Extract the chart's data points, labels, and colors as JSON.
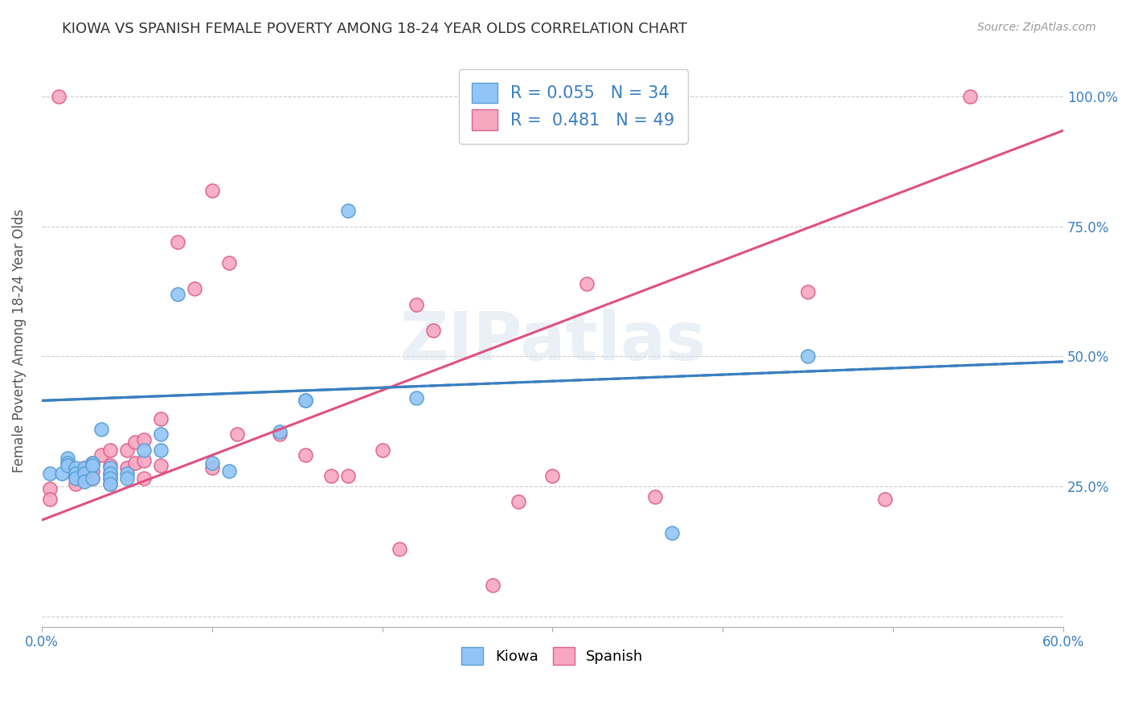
{
  "title": "KIOWA VS SPANISH FEMALE POVERTY AMONG 18-24 YEAR OLDS CORRELATION CHART",
  "source": "Source: ZipAtlas.com",
  "xlabel": "",
  "ylabel": "Female Poverty Among 18-24 Year Olds",
  "xlim": [
    0.0,
    0.6
  ],
  "ylim": [
    -0.02,
    1.08
  ],
  "xticks": [
    0.0,
    0.1,
    0.2,
    0.3,
    0.4,
    0.5,
    0.6
  ],
  "xticklabels": [
    "0.0%",
    "",
    "",
    "",
    "",
    "",
    "60.0%"
  ],
  "yticks": [
    0.0,
    0.25,
    0.5,
    0.75,
    1.0
  ],
  "right_yticklabels": [
    "",
    "25.0%",
    "50.0%",
    "75.0%",
    "100.0%"
  ],
  "kiowa_color": "#92c5f7",
  "kiowa_edge": "#5a9fd4",
  "spanish_color": "#f7a8c0",
  "spanish_edge": "#e06090",
  "trend_kiowa_color": "#3a7fc0",
  "trend_spanish_color": "#e05080",
  "legend_R_kiowa": "0.055",
  "legend_N_kiowa": "34",
  "legend_R_spanish": "0.481",
  "legend_N_spanish": "49",
  "watermark": "ZIPatlas",
  "kiowa_trend_x": [
    0.0,
    0.6
  ],
  "kiowa_trend_y": [
    0.415,
    0.49
  ],
  "spanish_trend_x": [
    0.0,
    0.6
  ],
  "spanish_trend_y": [
    0.185,
    0.935
  ],
  "kiowa_x": [
    0.005,
    0.012,
    0.015,
    0.015,
    0.015,
    0.02,
    0.02,
    0.02,
    0.025,
    0.025,
    0.025,
    0.03,
    0.03,
    0.03,
    0.035,
    0.04,
    0.04,
    0.04,
    0.04,
    0.05,
    0.05,
    0.06,
    0.07,
    0.07,
    0.08,
    0.1,
    0.11,
    0.14,
    0.155,
    0.155,
    0.18,
    0.22,
    0.37,
    0.45
  ],
  "kiowa_y": [
    0.275,
    0.275,
    0.305,
    0.295,
    0.29,
    0.285,
    0.275,
    0.265,
    0.285,
    0.275,
    0.26,
    0.295,
    0.29,
    0.265,
    0.36,
    0.285,
    0.275,
    0.265,
    0.255,
    0.275,
    0.265,
    0.32,
    0.35,
    0.32,
    0.62,
    0.295,
    0.28,
    0.355,
    0.415,
    0.415,
    0.78,
    0.42,
    0.16,
    0.5
  ],
  "spanish_x": [
    0.005,
    0.005,
    0.01,
    0.02,
    0.02,
    0.02,
    0.025,
    0.025,
    0.025,
    0.03,
    0.03,
    0.03,
    0.035,
    0.04,
    0.04,
    0.04,
    0.04,
    0.04,
    0.05,
    0.05,
    0.055,
    0.055,
    0.06,
    0.06,
    0.06,
    0.07,
    0.07,
    0.08,
    0.09,
    0.1,
    0.1,
    0.11,
    0.115,
    0.14,
    0.155,
    0.17,
    0.18,
    0.2,
    0.21,
    0.22,
    0.23,
    0.265,
    0.28,
    0.3,
    0.32,
    0.36,
    0.45,
    0.495,
    0.545
  ],
  "spanish_y": [
    0.245,
    0.225,
    1.0,
    0.275,
    0.265,
    0.255,
    0.285,
    0.275,
    0.265,
    0.295,
    0.28,
    0.265,
    0.31,
    0.32,
    0.29,
    0.275,
    0.265,
    0.255,
    0.32,
    0.285,
    0.335,
    0.295,
    0.34,
    0.3,
    0.265,
    0.38,
    0.29,
    0.72,
    0.63,
    0.285,
    0.82,
    0.68,
    0.35,
    0.35,
    0.31,
    0.27,
    0.27,
    0.32,
    0.13,
    0.6,
    0.55,
    0.06,
    0.22,
    0.27,
    0.64,
    0.23,
    0.625,
    0.225,
    1.0
  ]
}
